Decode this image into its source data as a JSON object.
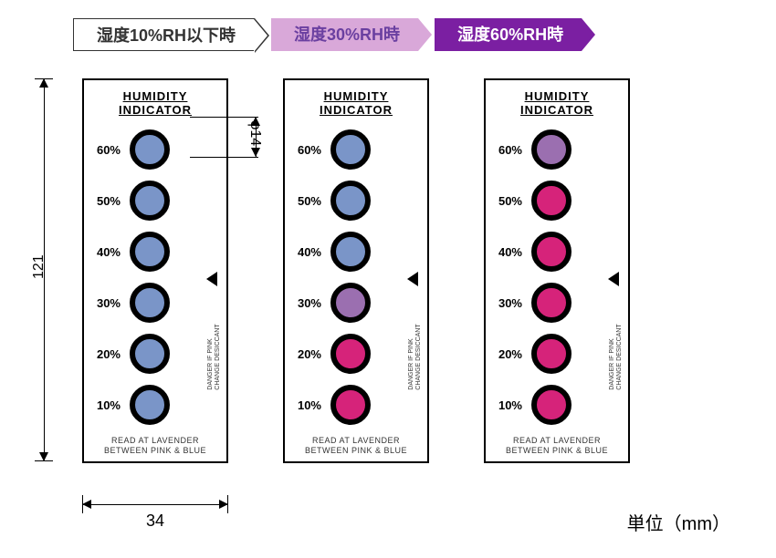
{
  "tabs": [
    {
      "label": "湿度10%RH以下時",
      "bg": "#ffffff",
      "fg": "#333333",
      "arrow": "#ffffff"
    },
    {
      "label": "湿度30%RH時",
      "bg": "#d9a8d9",
      "fg": "#6a3fa0",
      "arrow": "#d9a8d9"
    },
    {
      "label": "湿度60%RH時",
      "bg": "#7b1fa2",
      "fg": "#ffffff",
      "arrow": "#7b1fa2"
    }
  ],
  "card_title1": "HUMIDITY",
  "card_title2": "INDICATOR",
  "card_footer1": "READ AT LAVENDER",
  "card_footer2": "BETWEEN PINK & BLUE",
  "danger_text1": "DANGER IF PINK",
  "danger_text2": "CHANGE DESICCANT",
  "dimensions": {
    "height": "121",
    "width": "34",
    "phi": "φ14"
  },
  "unit_label": "単位（mm）",
  "colors": {
    "blue": "#7a95c8",
    "lavender": "#9b6fb0",
    "pink": "#d6237a",
    "ring": "#000000"
  },
  "labels": [
    "60%",
    "50%",
    "40%",
    "30%",
    "20%",
    "10%"
  ],
  "cards": [
    {
      "spots": [
        "blue",
        "blue",
        "blue",
        "blue",
        "blue",
        "blue"
      ]
    },
    {
      "spots": [
        "blue",
        "blue",
        "blue",
        "lavender",
        "pink",
        "pink"
      ]
    },
    {
      "spots": [
        "lavender",
        "pink",
        "pink",
        "pink",
        "pink",
        "pink"
      ]
    }
  ]
}
